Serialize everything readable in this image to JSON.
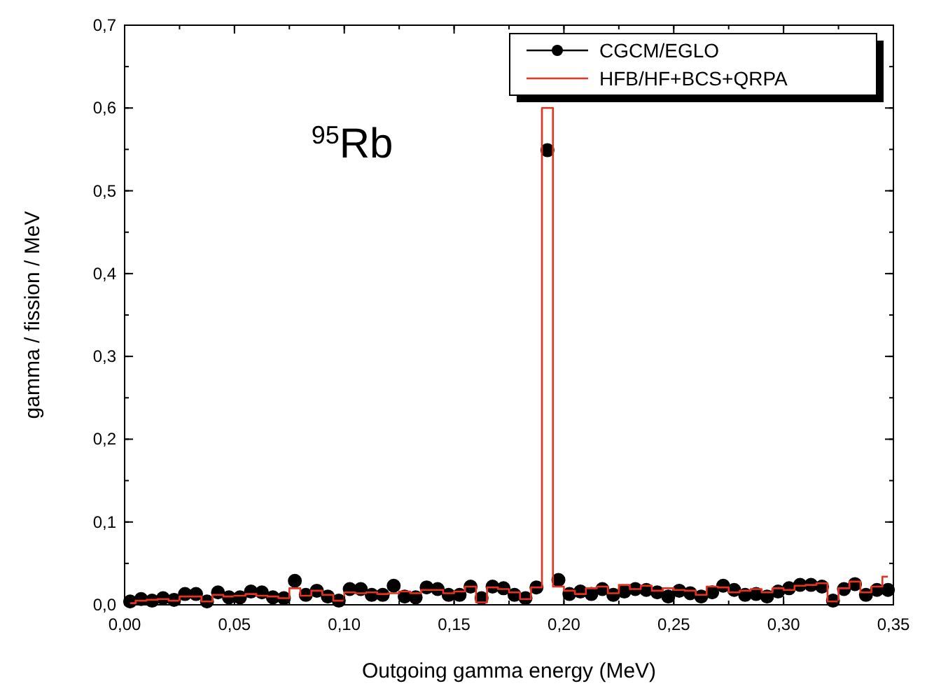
{
  "chart_data": {
    "type": "scatter",
    "xlabel": "Outgoing gamma energy (MeV)",
    "ylabel": "gamma / fission / MeV",
    "annotations": [
      "$^{95}$Rb"
    ],
    "xlim": [
      0,
      0.35
    ],
    "ylim": [
      0,
      0.7
    ],
    "xticks": [
      {
        "value": 0,
        "label": "0,00"
      },
      {
        "value": 0.05,
        "label": "0,05"
      },
      {
        "value": 0.1,
        "label": "0,10"
      },
      {
        "value": 0.15,
        "label": "0,15"
      },
      {
        "value": 0.2,
        "label": "0,20"
      },
      {
        "value": 0.25,
        "label": "0,25"
      },
      {
        "value": 0.3,
        "label": "0,30"
      },
      {
        "value": 0.35,
        "label": "0,35"
      }
    ],
    "yticks": [
      {
        "value": 0,
        "label": "0,0"
      },
      {
        "value": 0.1,
        "label": "0,1"
      },
      {
        "value": 0.2,
        "label": "0,2"
      },
      {
        "value": 0.3,
        "label": "0,3"
      },
      {
        "value": 0.4,
        "label": "0,4"
      },
      {
        "value": 0.5,
        "label": "0,5"
      },
      {
        "value": 0.6,
        "label": "0,6"
      },
      {
        "value": 0.7,
        "label": "0,7"
      }
    ],
    "legend": "top right",
    "series": [
      {
        "name": "CGCM/EGLO",
        "color": "#000000",
        "marker": "circle",
        "values": [
          0.004,
          0.007,
          0.005,
          0.008,
          0.006,
          0.013,
          0.013,
          0.004,
          0.015,
          0.009,
          0.009,
          0.016,
          0.015,
          0.009,
          0.008,
          0.029,
          0.012,
          0.017,
          0.01,
          0.005,
          0.019,
          0.019,
          0.012,
          0.012,
          0.023,
          0.01,
          0.009,
          0.021,
          0.019,
          0.012,
          0.012,
          0.022,
          0.008,
          0.022,
          0.02,
          0.012,
          0.008,
          0.021,
          0.549,
          0.03,
          0.013,
          0.016,
          0.013,
          0.019,
          0.012,
          0.016,
          0.019,
          0.018,
          0.015,
          0.01,
          0.017,
          0.014,
          0.01,
          0.015,
          0.023,
          0.018,
          0.012,
          0.013,
          0.01,
          0.016,
          0.02,
          0.024,
          0.024,
          0.022,
          0.005,
          0.019,
          0.025,
          0.012,
          0.018,
          0.018
        ]
      },
      {
        "name": "HFB/HF+BCS+QRPA",
        "color": "#e8311f",
        "type": "step",
        "values": [
          0.002,
          0.005,
          0.006,
          0.007,
          0.005,
          0.01,
          0.01,
          0.004,
          0.012,
          0.01,
          0.011,
          0.013,
          0.011,
          0.01,
          0.008,
          0.02,
          0.011,
          0.017,
          0.012,
          0.005,
          0.015,
          0.014,
          0.015,
          0.013,
          0.014,
          0.016,
          0.014,
          0.018,
          0.018,
          0.014,
          0.016,
          0.022,
          0.003,
          0.021,
          0.019,
          0.015,
          0.007,
          0.021,
          0.6,
          0.022,
          0.017,
          0.013,
          0.02,
          0.022,
          0.014,
          0.024,
          0.019,
          0.023,
          0.017,
          0.02,
          0.018,
          0.017,
          0.012,
          0.022,
          0.021,
          0.015,
          0.017,
          0.019,
          0.015,
          0.02,
          0.018,
          0.023,
          0.024,
          0.026,
          0.004,
          0.02,
          0.028,
          0.015,
          0.022,
          0.034
        ]
      }
    ],
    "x": [
      0.0025,
      0.0075,
      0.0125,
      0.0175,
      0.0225,
      0.0275,
      0.0325,
      0.0375,
      0.0425,
      0.0475,
      0.0525,
      0.0575,
      0.0625,
      0.0675,
      0.0725,
      0.0775,
      0.0825,
      0.0875,
      0.0925,
      0.0975,
      0.1025,
      0.1075,
      0.1125,
      0.1175,
      0.1225,
      0.1275,
      0.1325,
      0.1375,
      0.1425,
      0.1475,
      0.1525,
      0.1575,
      0.1625,
      0.1675,
      0.1725,
      0.1775,
      0.1825,
      0.1875,
      0.1925,
      0.1975,
      0.2025,
      0.2075,
      0.2125,
      0.2175,
      0.2225,
      0.2275,
      0.2325,
      0.2375,
      0.2425,
      0.2475,
      0.2525,
      0.2575,
      0.2625,
      0.2675,
      0.2725,
      0.2775,
      0.2825,
      0.2875,
      0.2925,
      0.2975,
      0.3025,
      0.3075,
      0.3125,
      0.3175,
      0.3225,
      0.3275,
      0.3325,
      0.3375,
      0.3425,
      0.3475
    ]
  }
}
